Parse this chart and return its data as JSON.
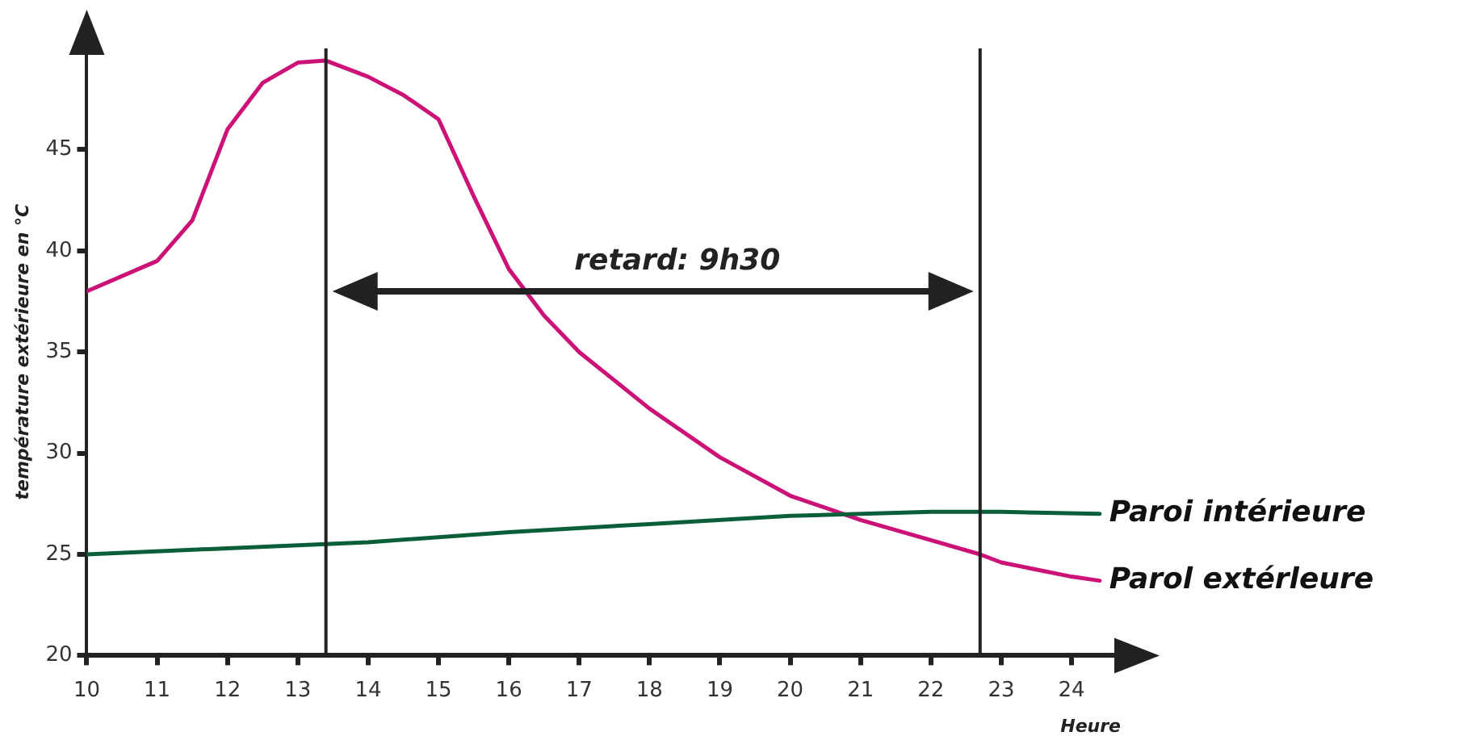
{
  "chart_data": {
    "type": "line",
    "ylabel": "température extérieure en °C",
    "xlabel": "Heure",
    "xlim": [
      10,
      24.7
    ],
    "xticks": [
      10,
      11,
      12,
      13,
      14,
      15,
      16,
      17,
      18,
      19,
      20,
      21,
      22,
      23,
      24
    ],
    "ylim": [
      20,
      50
    ],
    "yticks": [
      20,
      25,
      30,
      35,
      40,
      45
    ],
    "grid": false,
    "legend": false,
    "marker": "none",
    "line_style": "solid",
    "series": [
      {
        "name": "Paroi intérieure",
        "color": "#0b5e3a",
        "x": [
          10,
          12,
          14,
          16,
          18,
          20,
          22,
          23,
          24.4
        ],
        "values": [
          25.0,
          25.3,
          25.6,
          26.1,
          26.5,
          26.9,
          27.1,
          27.1,
          27.0
        ]
      },
      {
        "name": "Parol extérleure",
        "color": "#cc1177",
        "x": [
          10,
          11,
          11.5,
          12,
          12.5,
          13,
          13.4,
          14,
          14.5,
          15,
          15.5,
          16,
          16.5,
          17,
          18,
          19,
          20,
          21,
          22,
          22.7,
          23,
          24,
          24.4
        ],
        "values": [
          38.0,
          39.5,
          41.5,
          46.0,
          48.3,
          49.3,
          49.4,
          48.6,
          47.7,
          46.5,
          42.7,
          39.1,
          36.8,
          35.0,
          32.2,
          29.8,
          27.9,
          26.7,
          25.7,
          25.0,
          24.6,
          23.9,
          23.7
        ]
      }
    ],
    "ref_lines": [
      {
        "axis": "x",
        "value": 13.4,
        "color": "#222222"
      },
      {
        "axis": "x",
        "value": 22.7,
        "color": "#222222"
      }
    ],
    "annotations": [
      "retard: 9h30"
    ]
  }
}
